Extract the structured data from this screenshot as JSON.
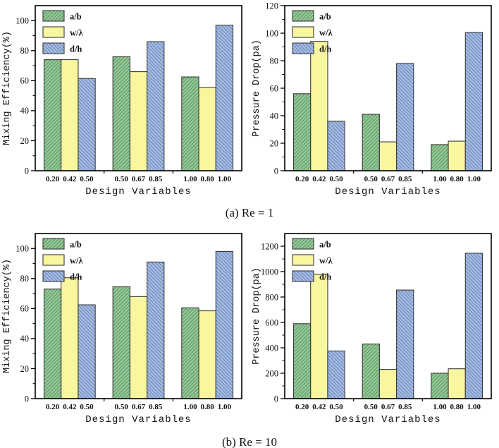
{
  "captions": {
    "a": "(a) Re = 1",
    "b": "(b) Re = 10"
  },
  "legend": {
    "entries": [
      "a/b",
      "w/λ",
      "d/h"
    ]
  },
  "colors": {
    "background": "#ffffff",
    "axis": "#000000",
    "bar_edge": "#3a3a3a",
    "text": "#111111"
  },
  "series_styles": [
    {
      "name": "a/b",
      "fill": "#93CB96",
      "hatch": "forward-diagonal",
      "hatch_color": "#5E8E64"
    },
    {
      "name": "w/λ",
      "fill": "#F9F6A0",
      "hatch": "none",
      "hatch_color": ""
    },
    {
      "name": "d/h",
      "fill": "#A5BEE5",
      "hatch": "backward-diagonal",
      "hatch_color": "#6880AE"
    }
  ],
  "chart_data": [
    {
      "id": "mixing-efficiency-re1",
      "type": "bar",
      "title": "",
      "xlabel": "Design Variables",
      "ylabel": "Mixing Efficiency(%)",
      "ylim": [
        0,
        110
      ],
      "yticks": [
        0,
        20,
        40,
        60,
        80,
        100
      ],
      "ytick_minor_step": 10,
      "grid": false,
      "legend_position": "upper-left",
      "bar_labels": [
        [
          "0.20",
          "0.42",
          "0.50"
        ],
        [
          "0.50",
          "0.67",
          "0.85"
        ],
        [
          "1.00",
          "0.80",
          "1.00"
        ]
      ],
      "series": [
        {
          "name": "a/b",
          "values": [
            74,
            76,
            62.5
          ]
        },
        {
          "name": "w/λ",
          "values": [
            74,
            66,
            55.5
          ]
        },
        {
          "name": "d/h",
          "values": [
            61.5,
            86,
            97
          ]
        }
      ]
    },
    {
      "id": "pressure-drop-re1",
      "type": "bar",
      "title": "",
      "xlabel": "Design Variables",
      "ylabel": "Pressure Drop(pa)",
      "ylim": [
        0,
        120
      ],
      "yticks": [
        0,
        20,
        40,
        60,
        80,
        100,
        120
      ],
      "ytick_minor_step": 10,
      "grid": false,
      "legend_position": "upper-left",
      "bar_labels": [
        [
          "0.20",
          "0.42",
          "0.50"
        ],
        [
          "0.50",
          "0.67",
          "0.85"
        ],
        [
          "1.00",
          "0.80",
          "1.00"
        ]
      ],
      "series": [
        {
          "name": "a/b",
          "values": [
            56,
            41,
            19
          ]
        },
        {
          "name": "w/λ",
          "values": [
            94,
            21,
            21.5
          ]
        },
        {
          "name": "d/h",
          "values": [
            36,
            78,
            100.5
          ]
        }
      ]
    },
    {
      "id": "mixing-efficiency-re10",
      "type": "bar",
      "title": "",
      "xlabel": "Design Variables",
      "ylabel": "Mixing Efficiency(%)",
      "ylim": [
        0,
        110
      ],
      "yticks": [
        0,
        20,
        40,
        60,
        80,
        100
      ],
      "ytick_minor_step": 10,
      "grid": false,
      "legend_position": "upper-left",
      "bar_labels": [
        [
          "0.20",
          "0.42",
          "0.50"
        ],
        [
          "0.50",
          "0.67",
          "0.85"
        ],
        [
          "1.00",
          "0.80",
          "1.00"
        ]
      ],
      "series": [
        {
          "name": "a/b",
          "values": [
            73,
            74.5,
            60.5
          ]
        },
        {
          "name": "w/λ",
          "values": [
            80.5,
            68,
            58.5
          ]
        },
        {
          "name": "d/h",
          "values": [
            62.5,
            91,
            98
          ]
        }
      ]
    },
    {
      "id": "pressure-drop-re10",
      "type": "bar",
      "title": "",
      "xlabel": "Design Variables",
      "ylabel": "Pressure Drop(pa)",
      "ylim": [
        0,
        1300
      ],
      "yticks": [
        0,
        200,
        400,
        600,
        800,
        1000,
        1200
      ],
      "ytick_minor_step": 100,
      "grid": false,
      "legend_position": "upper-left",
      "bar_labels": [
        [
          "0.20",
          "0.42",
          "0.50"
        ],
        [
          "0.50",
          "0.67",
          "0.85"
        ],
        [
          "1.00",
          "0.80",
          "1.00"
        ]
      ],
      "series": [
        {
          "name": "a/b",
          "values": [
            590,
            430,
            200
          ]
        },
        {
          "name": "w/λ",
          "values": [
            980,
            230,
            235
          ]
        },
        {
          "name": "d/h",
          "values": [
            375,
            855,
            1145
          ]
        }
      ]
    }
  ]
}
